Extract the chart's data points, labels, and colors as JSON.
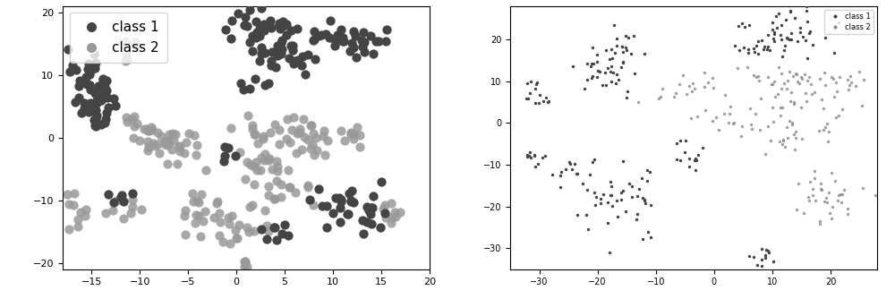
{
  "left_plot": {
    "xlim": [
      -18,
      20
    ],
    "ylim": [
      -21,
      21
    ],
    "xticks": [
      -15,
      -10,
      -5,
      0,
      5,
      10,
      15,
      20
    ],
    "yticks": [
      -20,
      -10,
      0,
      10,
      20
    ],
    "class1_color": "#444444",
    "class2_color": "#999999",
    "marker_size": 55,
    "legend_fontsize": 11,
    "tick_labelsize": 8
  },
  "right_plot": {
    "xlim": [
      -35,
      28
    ],
    "ylim": [
      -35,
      28
    ],
    "xticks": [
      -30,
      -20,
      -10,
      0,
      10,
      20
    ],
    "yticks": [
      -30,
      -20,
      -10,
      0,
      10,
      20
    ],
    "class1_color": "#444444",
    "class2_color": "#888888",
    "marker_size": 6,
    "legend_fontsize": 6,
    "tick_labelsize": 7
  },
  "seed": 7
}
